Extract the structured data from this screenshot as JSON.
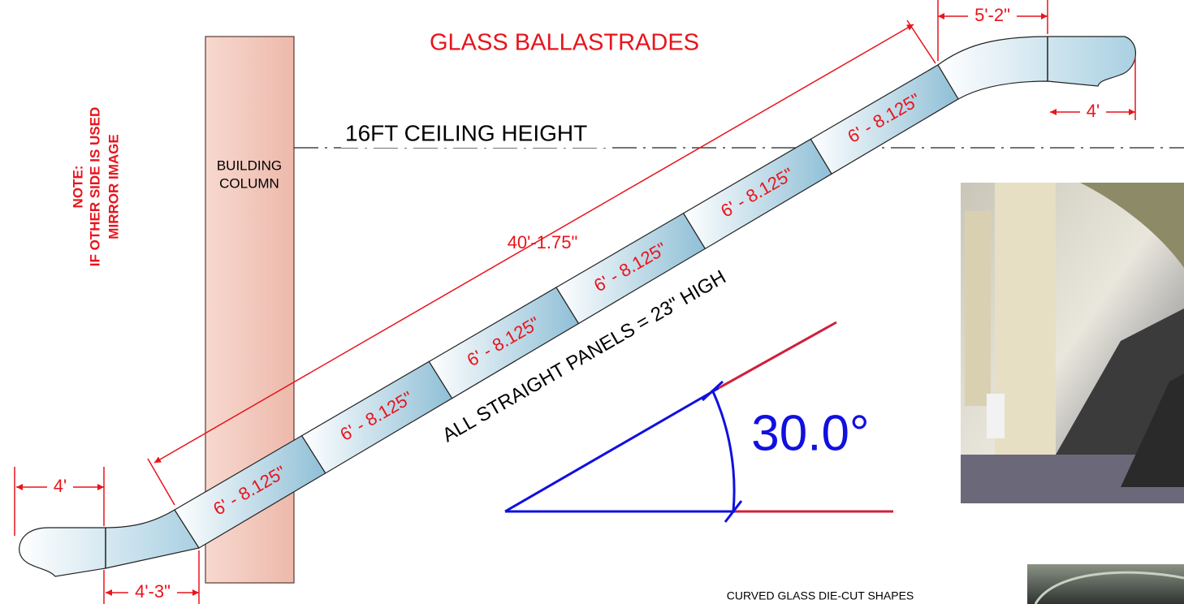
{
  "header": {
    "title": "GLASS BALLASTRADES"
  },
  "ceiling": "16FT CEILING HEIGHT",
  "column": {
    "line1": "BUILDING",
    "line2": "COLUMN"
  },
  "note": {
    "line1": "NOTE:",
    "line2": "IF OTHER SIDE IS USED",
    "line3": "MIRROR IMAGE"
  },
  "dimensions": {
    "top_end": "5'-2\"",
    "top_curve": "4'",
    "bottom_curve": "4'",
    "bottom_end": "4'-3\"",
    "overall": "40'-1.75\""
  },
  "panels": [
    "6' - 8.125\"",
    "6' - 8.125\"",
    "6' - 8.125\"",
    "6' - 8.125\"",
    "6' - 8.125\"",
    "6' - 8.125\""
  ],
  "panel_note": "ALL STRAIGHT PANELS = 23\" HIGH",
  "angle": "30.0°",
  "caption": "CURVED GLASS DIE-CUT SHAPES"
}
